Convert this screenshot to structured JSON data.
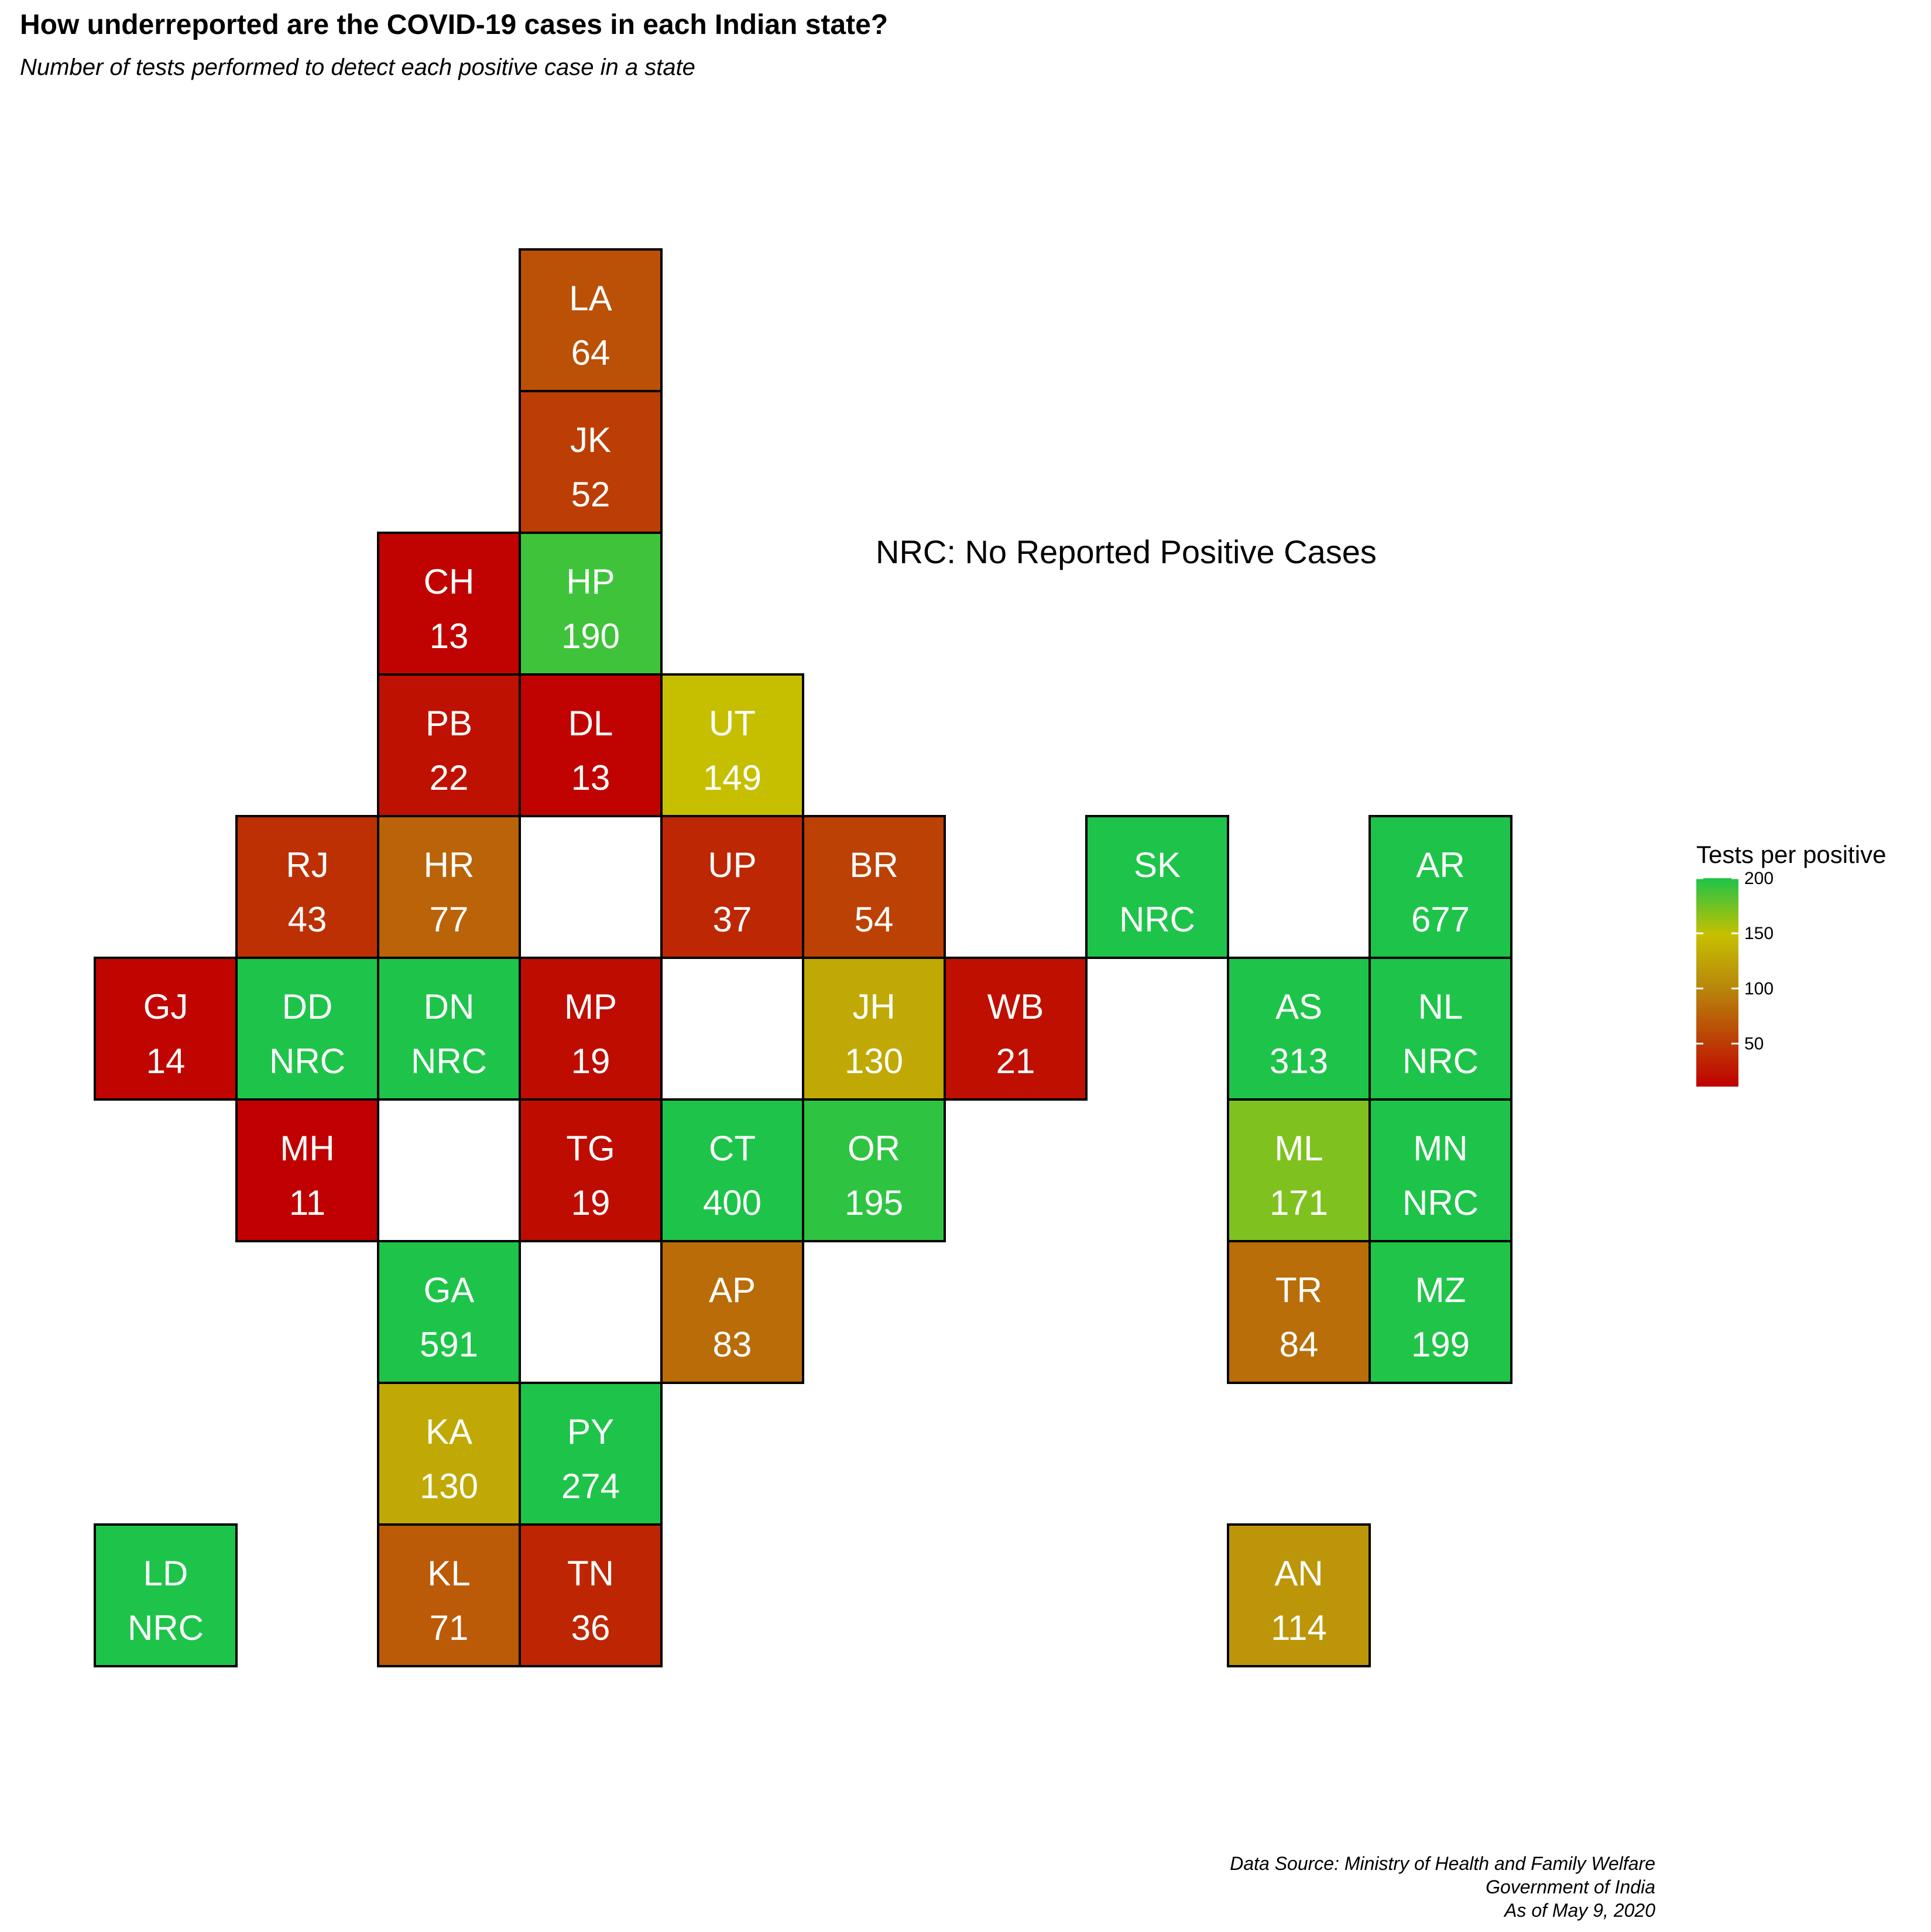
{
  "title": "How underreported are the COVID-19 cases in each Indian state?",
  "subtitle": "Number of tests performed to detect each positive case in a state",
  "note": "NRC: No Reported Positive Cases",
  "legend": {
    "title": "Tests per positive",
    "min": 11,
    "max": 200,
    "ticks": [
      200,
      150,
      100,
      50
    ],
    "tick_labels": [
      "200",
      "150",
      "100",
      "50"
    ],
    "color_stops": [
      {
        "value": 11,
        "color": "#c00000"
      },
      {
        "value": 100,
        "color": "#b8860b"
      },
      {
        "value": 150,
        "color": "#c6c000"
      },
      {
        "value": 200,
        "color": "#1dc449"
      }
    ]
  },
  "caption": {
    "line1": "Data Source: Ministry of Health and Family Welfare",
    "line2": "Government of India",
    "line3": "As of May 9, 2020"
  },
  "chart_data": {
    "type": "tile-grid map",
    "value_label": "Tests per positive",
    "tiles": [
      {
        "code": "LA",
        "label": "64",
        "value": 64,
        "col": 4,
        "row": 0
      },
      {
        "code": "JK",
        "label": "52",
        "value": 52,
        "col": 4,
        "row": 1
      },
      {
        "code": "CH",
        "label": "13",
        "value": 13,
        "col": 3,
        "row": 2
      },
      {
        "code": "HP",
        "label": "190",
        "value": 190,
        "col": 4,
        "row": 2
      },
      {
        "code": "PB",
        "label": "22",
        "value": 22,
        "col": 3,
        "row": 3
      },
      {
        "code": "DL",
        "label": "13",
        "value": 13,
        "col": 4,
        "row": 3
      },
      {
        "code": "UT",
        "label": "149",
        "value": 149,
        "col": 5,
        "row": 3
      },
      {
        "code": "RJ",
        "label": "43",
        "value": 43,
        "col": 2,
        "row": 4
      },
      {
        "code": "HR",
        "label": "77",
        "value": 77,
        "col": 3,
        "row": 4
      },
      {
        "code": "UP",
        "label": "37",
        "value": 37,
        "col": 5,
        "row": 4
      },
      {
        "code": "BR",
        "label": "54",
        "value": 54,
        "col": 6,
        "row": 4
      },
      {
        "code": "SK",
        "label": "NRC",
        "value": null,
        "col": 8,
        "row": 4
      },
      {
        "code": "AR",
        "label": "677",
        "value": 677,
        "col": 10,
        "row": 4
      },
      {
        "code": "GJ",
        "label": "14",
        "value": 14,
        "col": 1,
        "row": 5
      },
      {
        "code": "DD",
        "label": "NRC",
        "value": null,
        "col": 2,
        "row": 5
      },
      {
        "code": "DN",
        "label": "NRC",
        "value": null,
        "col": 3,
        "row": 5
      },
      {
        "code": "MP",
        "label": "19",
        "value": 19,
        "col": 4,
        "row": 5
      },
      {
        "code": "JH",
        "label": "130",
        "value": 130,
        "col": 6,
        "row": 5
      },
      {
        "code": "WB",
        "label": "21",
        "value": 21,
        "col": 7,
        "row": 5
      },
      {
        "code": "AS",
        "label": "313",
        "value": 313,
        "col": 9,
        "row": 5
      },
      {
        "code": "NL",
        "label": "NRC",
        "value": null,
        "col": 10,
        "row": 5
      },
      {
        "code": "MH",
        "label": "11",
        "value": 11,
        "col": 2,
        "row": 6
      },
      {
        "code": "TG",
        "label": "19",
        "value": 19,
        "col": 4,
        "row": 6
      },
      {
        "code": "CT",
        "label": "400",
        "value": 400,
        "col": 5,
        "row": 6
      },
      {
        "code": "OR",
        "label": "195",
        "value": 195,
        "col": 6,
        "row": 6
      },
      {
        "code": "ML",
        "label": "171",
        "value": 171,
        "col": 9,
        "row": 6
      },
      {
        "code": "MN",
        "label": "NRC",
        "value": null,
        "col": 10,
        "row": 6
      },
      {
        "code": "GA",
        "label": "591",
        "value": 591,
        "col": 3,
        "row": 7
      },
      {
        "code": "AP",
        "label": "83",
        "value": 83,
        "col": 5,
        "row": 7
      },
      {
        "code": "TR",
        "label": "84",
        "value": 84,
        "col": 9,
        "row": 7
      },
      {
        "code": "MZ",
        "label": "199",
        "value": 199,
        "col": 10,
        "row": 7
      },
      {
        "code": "KA",
        "label": "130",
        "value": 130,
        "col": 3,
        "row": 8
      },
      {
        "code": "PY",
        "label": "274",
        "value": 274,
        "col": 4,
        "row": 8
      },
      {
        "code": "LD",
        "label": "NRC",
        "value": null,
        "col": 1,
        "row": 9
      },
      {
        "code": "KL",
        "label": "71",
        "value": 71,
        "col": 3,
        "row": 9
      },
      {
        "code": "TN",
        "label": "36",
        "value": 36,
        "col": 4,
        "row": 9
      },
      {
        "code": "AN",
        "label": "114",
        "value": 114,
        "col": 9,
        "row": 9
      }
    ]
  }
}
